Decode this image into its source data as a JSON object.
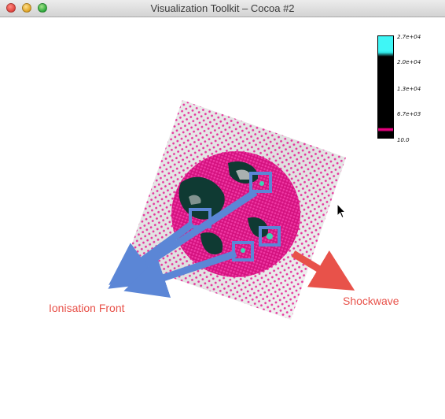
{
  "window": {
    "title": "Visualization Toolkit – Cocoa #2"
  },
  "scalar_bar": {
    "labels": [
      "2.7e+04",
      "2.0e+04",
      "1.3e+04",
      "6.7e+03",
      "10.0"
    ],
    "colors": {
      "top": "#3ff6f6",
      "body": "#000000",
      "band": "#e8007f"
    }
  },
  "annotations": {
    "ionisation_front": "Ionisation Front",
    "shockwave": "Shockwave",
    "colors": {
      "text": "#e8524a",
      "front_arrows": "#5b86d6",
      "shock_arrow": "#e8524a"
    }
  },
  "volume": {
    "colors": {
      "surface": "#e5168f",
      "cavity": "#0f3a33",
      "shade": "#cfcfcf"
    }
  }
}
